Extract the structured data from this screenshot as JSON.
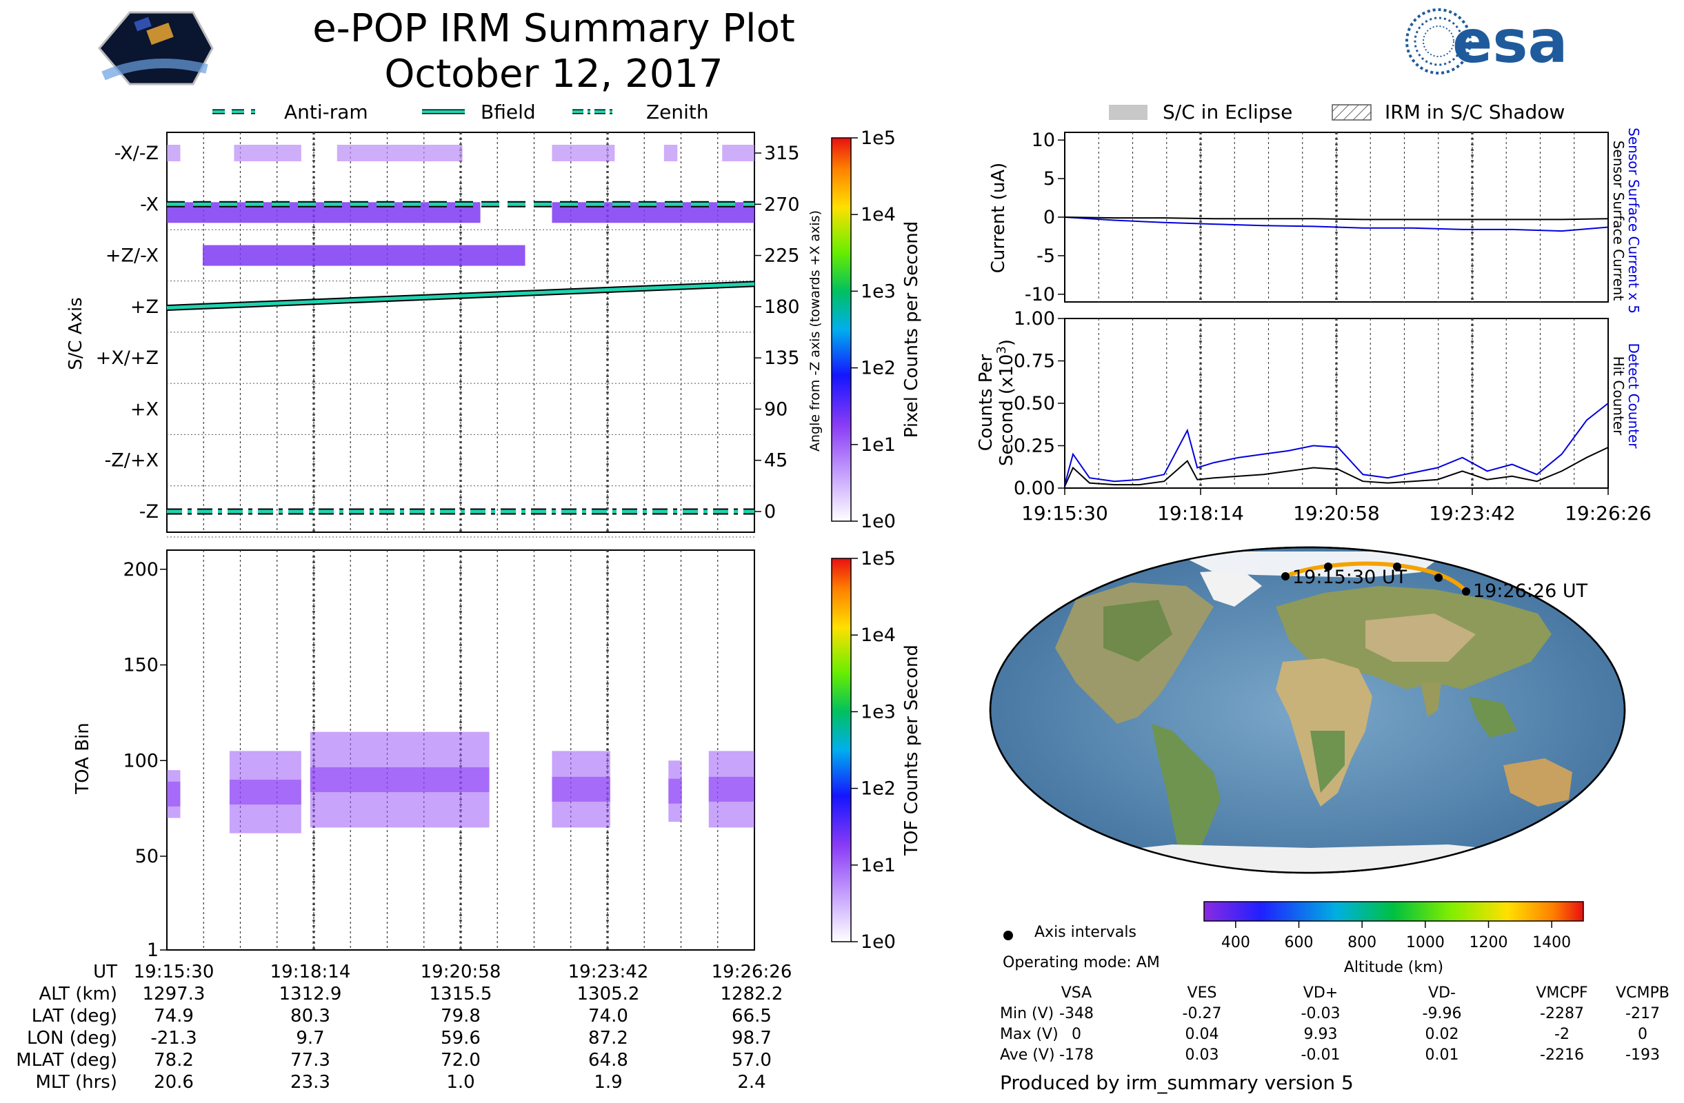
{
  "header": {
    "title": "e-POP IRM Summary Plot",
    "date": "October 12, 2017",
    "logo_left": "CASSIOPE",
    "logo_right": "esa"
  },
  "legend_top_left": [
    "Anti-ram",
    "Bfield",
    "Zenith"
  ],
  "legend_top_right": [
    "S/C in Eclipse",
    "IRM in S/C Shadow"
  ],
  "colors": {
    "accent_line": "#1fd3b0",
    "pixel_purple": "#8a3cf5",
    "detect_blue": "#0000dd",
    "track_orange": "#f5a200"
  },
  "chart_data": [
    {
      "type": "heatmap",
      "name": "pixel_counts",
      "xlabel": "",
      "ylabel": "S/C Axis",
      "y_right_label": "Angle from -Z axis (towards +X axis)",
      "y_categories": [
        "-X/-Z",
        "-X",
        "+Z/-X",
        "+Z",
        "+X/+Z",
        "+X",
        "-Z/+X",
        "-Z"
      ],
      "y_right_ticks": [
        315,
        270,
        225,
        180,
        135,
        90,
        45,
        0
      ],
      "colorbar": {
        "label": "Pixel Counts per Second",
        "ticks": [
          "1e0",
          "1e1",
          "1e2",
          "1e3",
          "1e4",
          "1e5"
        ]
      },
      "series": [
        {
          "name": "Anti-ram",
          "style": "dashed",
          "angle_deg": [
            270,
            270
          ]
        },
        {
          "name": "Bfield",
          "style": "solid",
          "angle_deg": [
            179,
            200
          ]
        },
        {
          "name": "Zenith",
          "style": "dash-dot",
          "angle_deg": [
            0,
            0
          ]
        }
      ],
      "activity_bands": [
        {
          "axis": "-X/-Z",
          "intensity": "low",
          "time_spans": [
            [
              "19:15:30",
              "19:15:45"
            ],
            [
              "19:16:45",
              "19:18:00"
            ],
            [
              "19:18:40",
              "19:21:00"
            ],
            [
              "19:22:40",
              "19:23:50"
            ],
            [
              "19:24:45",
              "19:25:00"
            ],
            [
              "19:25:50",
              "19:26:26"
            ]
          ]
        },
        {
          "axis": "-X",
          "intensity": "moderate",
          "time_spans": [
            [
              "19:15:30",
              "19:21:20"
            ],
            [
              "19:22:40",
              "19:26:26"
            ]
          ]
        },
        {
          "axis": "+Z/-X",
          "intensity": "moderate",
          "time_spans": [
            [
              "19:16:10",
              "19:22:10"
            ]
          ]
        }
      ]
    },
    {
      "type": "heatmap",
      "name": "tof_counts",
      "ylabel": "TOA Bin",
      "yticks": [
        1,
        50,
        100,
        150,
        200
      ],
      "ylim": [
        1,
        210
      ],
      "colorbar": {
        "label": "TOF Counts per Second",
        "ticks": [
          "1e0",
          "1e1",
          "1e2",
          "1e3",
          "1e4",
          "1e5"
        ]
      },
      "activity_spans": [
        {
          "time": [
            "19:15:30",
            "19:15:45"
          ],
          "toa_bins": [
            70,
            95
          ]
        },
        {
          "time": [
            "19:16:40",
            "19:18:00"
          ],
          "toa_bins": [
            62,
            105
          ]
        },
        {
          "time": [
            "19:18:10",
            "19:21:30"
          ],
          "toa_bins": [
            65,
            115
          ]
        },
        {
          "time": [
            "19:22:40",
            "19:23:45"
          ],
          "toa_bins": [
            65,
            105
          ]
        },
        {
          "time": [
            "19:24:50",
            "19:25:05"
          ],
          "toa_bins": [
            68,
            100
          ]
        },
        {
          "time": [
            "19:25:35",
            "19:26:26"
          ],
          "toa_bins": [
            65,
            105
          ]
        }
      ]
    },
    {
      "type": "line",
      "name": "current",
      "ylabel": "Current (uA)",
      "ylim": [
        -11,
        11
      ],
      "yticks": [
        10,
        5,
        0,
        -5,
        -10
      ],
      "right_labels": [
        "Sensor Surface Current x 5",
        "Sensor Surface Current"
      ],
      "x": [
        "19:15:30",
        "19:16:30",
        "19:17:30",
        "19:18:30",
        "19:19:30",
        "19:20:30",
        "19:21:30",
        "19:22:30",
        "19:23:30",
        "19:24:30",
        "19:25:30",
        "19:26:26"
      ],
      "series": [
        {
          "name": "Sensor Surface Current x 5",
          "color": "#0000dd",
          "values": [
            0.0,
            -0.4,
            -0.7,
            -0.9,
            -1.1,
            -1.2,
            -1.4,
            -1.4,
            -1.6,
            -1.6,
            -1.8,
            -1.3
          ]
        },
        {
          "name": "Sensor Surface Current",
          "color": "#000000",
          "values": [
            0.0,
            -0.1,
            -0.1,
            -0.2,
            -0.2,
            -0.2,
            -0.3,
            -0.3,
            -0.3,
            -0.3,
            -0.3,
            -0.2
          ]
        }
      ]
    },
    {
      "type": "line",
      "name": "counts",
      "ylabel": "Counts Per Second (x10³)",
      "ylim": [
        0,
        1.0
      ],
      "yticks": [
        "1.00",
        "0.75",
        "0.50",
        "0.25",
        "0.00"
      ],
      "right_labels": [
        "Detect Counter",
        "Hit Counter"
      ],
      "xticks": [
        "19:15:30",
        "19:18:14",
        "19:20:58",
        "19:23:42",
        "19:26:26"
      ],
      "x": [
        "19:15:30",
        "19:15:40",
        "19:16:00",
        "19:16:30",
        "19:17:00",
        "19:17:30",
        "19:17:58",
        "19:18:10",
        "19:18:30",
        "19:19:00",
        "19:19:30",
        "19:20:00",
        "19:20:30",
        "19:21:00",
        "19:21:30",
        "19:22:00",
        "19:22:30",
        "19:23:00",
        "19:23:30",
        "19:24:00",
        "19:24:30",
        "19:25:00",
        "19:25:30",
        "19:26:00",
        "19:26:26"
      ],
      "series": [
        {
          "name": "Detect Counter",
          "color": "#0000dd",
          "values": [
            0.02,
            0.2,
            0.06,
            0.04,
            0.05,
            0.08,
            0.34,
            0.12,
            0.15,
            0.18,
            0.2,
            0.22,
            0.25,
            0.24,
            0.08,
            0.06,
            0.09,
            0.12,
            0.18,
            0.1,
            0.14,
            0.08,
            0.2,
            0.4,
            0.5
          ]
        },
        {
          "name": "Hit Counter",
          "color": "#000000",
          "values": [
            0.01,
            0.12,
            0.03,
            0.02,
            0.02,
            0.04,
            0.16,
            0.05,
            0.06,
            0.07,
            0.08,
            0.1,
            0.12,
            0.11,
            0.04,
            0.03,
            0.04,
            0.05,
            0.1,
            0.05,
            0.07,
            0.04,
            0.1,
            0.18,
            0.24
          ]
        }
      ]
    }
  ],
  "map": {
    "start_label": "19:15:30 UT",
    "end_label": "19:26:26 UT",
    "legend_item": "Axis intervals",
    "operating_mode": "Operating mode: AM",
    "colorbar_label": "Altitude (km)",
    "colorbar_ticks": [
      "400",
      "600",
      "800",
      "1000",
      "1200",
      "1400"
    ]
  },
  "orbit_table": {
    "rows": [
      {
        "label": "UT",
        "values": [
          "19:15:30",
          "19:18:14",
          "19:20:58",
          "19:23:42",
          "19:26:26"
        ]
      },
      {
        "label": "ALT (km)",
        "values": [
          "1297.3",
          "1312.9",
          "1315.5",
          "1305.2",
          "1282.2"
        ]
      },
      {
        "label": "LAT (deg)",
        "values": [
          "74.9",
          "80.3",
          "79.8",
          "74.0",
          "66.5"
        ]
      },
      {
        "label": "LON (deg)",
        "values": [
          "-21.3",
          "9.7",
          "59.6",
          "87.2",
          "98.7"
        ]
      },
      {
        "label": "MLAT (deg)",
        "values": [
          "78.2",
          "77.3",
          "72.0",
          "64.8",
          "57.0"
        ]
      },
      {
        "label": "MLT (hrs)",
        "values": [
          "20.6",
          "23.3",
          "1.0",
          "1.9",
          "2.4"
        ]
      }
    ]
  },
  "voltage_table": {
    "headers": [
      "VSA",
      "VES",
      "VD+",
      "VD-",
      "VMCPF",
      "VCMPB"
    ],
    "rows": [
      {
        "label": "Min (V)",
        "values": [
          "-348",
          "-0.27",
          "-0.03",
          "-9.96",
          "-2287",
          "-217"
        ]
      },
      {
        "label": "Max (V)",
        "values": [
          "0",
          "0.04",
          "9.93",
          "0.02",
          "-2",
          "0"
        ]
      },
      {
        "label": "Ave (V)",
        "values": [
          "-178",
          "0.03",
          "-0.01",
          "0.01",
          "-2216",
          "-193"
        ]
      }
    ]
  },
  "footer": "Produced by irm_summary version 5"
}
